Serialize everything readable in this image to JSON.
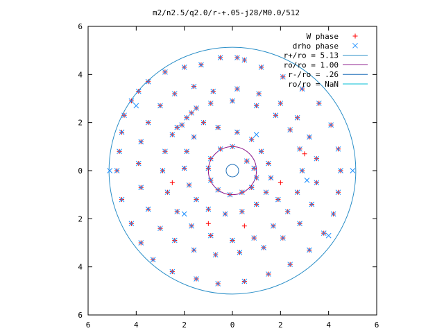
{
  "chart_data": {
    "type": "scatter",
    "title": "m2/n2.5/q2.0/r-+.05-j28/M0.0/512",
    "xlim": [
      -6,
      6
    ],
    "ylim": [
      -6,
      6
    ],
    "x_ticks": [
      -6,
      -4,
      -2,
      0,
      2,
      4,
      6
    ],
    "y_ticks": [
      -6,
      -4,
      -2,
      0,
      2,
      4,
      6
    ],
    "x_tick_labels": [
      "6",
      "4",
      "2",
      "0",
      "2",
      "4",
      "6"
    ],
    "y_tick_labels": [
      "6",
      "4",
      "2",
      "0",
      "2",
      "4",
      "6"
    ],
    "grid": false,
    "legend_position": "top-right",
    "legend": [
      {
        "label": "W phase",
        "marker": "+",
        "color": "#ff0000"
      },
      {
        "label": "drho phase",
        "marker": "x",
        "color": "#1e90ff"
      },
      {
        "label": "r+/ro = 5.13",
        "marker": "line",
        "color": "#2b8fc8"
      },
      {
        "label": "ro/ro = 1.00",
        "marker": "line",
        "color": "#8b1a8b"
      },
      {
        "label": "r-/ro = .26",
        "marker": "line",
        "color": "#1f6fb8"
      },
      {
        "label": "ro/ro = NaN",
        "marker": "line",
        "color": "#00bcd4"
      }
    ],
    "circles": [
      {
        "name": "r+/ro = 5.13",
        "r": 5.13,
        "color": "#2b8fc8"
      },
      {
        "name": "ro/ro = 1.00",
        "r": 1.0,
        "color": "#8b1a8b"
      },
      {
        "name": "r-/ro = .26",
        "r": 0.26,
        "color": "#1f6fb8"
      }
    ],
    "series": [
      {
        "name": "W phase",
        "marker": "+",
        "color": "#ff0000",
        "points": [
          [
            0.2,
            4.7
          ],
          [
            0.5,
            4.6
          ],
          [
            -0.5,
            4.7
          ],
          [
            -1.3,
            4.4
          ],
          [
            -2.0,
            4.3
          ],
          [
            -2.8,
            4.1
          ],
          [
            -3.5,
            3.7
          ],
          [
            -3.9,
            3.3
          ],
          [
            -4.2,
            2.9
          ],
          [
            -4.5,
            2.3
          ],
          [
            -4.6,
            1.6
          ],
          [
            -4.7,
            0.8
          ],
          [
            -4.8,
            0
          ],
          [
            -4.6,
            -1.2
          ],
          [
            -4.2,
            -2.2
          ],
          [
            -3.8,
            -3.0
          ],
          [
            -3.3,
            -3.7
          ],
          [
            -2.5,
            -4.2
          ],
          [
            -1.5,
            -4.5
          ],
          [
            -0.6,
            -4.7
          ],
          [
            0.5,
            -4.6
          ],
          [
            1.5,
            -4.3
          ],
          [
            2.4,
            -3.9
          ],
          [
            3.2,
            -3.3
          ],
          [
            3.8,
            -2.6
          ],
          [
            4.2,
            -1.8
          ],
          [
            4.4,
            -0.9
          ],
          [
            4.5,
            0
          ],
          [
            4.4,
            0.9
          ],
          [
            4.1,
            1.9
          ],
          [
            3.6,
            2.8
          ],
          [
            2.9,
            3.4
          ],
          [
            2.1,
            3.9
          ],
          [
            1.2,
            4.3
          ],
          [
            -1.6,
            3.5
          ],
          [
            -2.4,
            3.2
          ],
          [
            -3.0,
            2.7
          ],
          [
            -3.5,
            2.0
          ],
          [
            -3.8,
            1.2
          ],
          [
            -3.9,
            0.3
          ],
          [
            -3.8,
            -0.7
          ],
          [
            -3.5,
            -1.6
          ],
          [
            -3.0,
            -2.4
          ],
          [
            -2.4,
            -2.9
          ],
          [
            -1.6,
            -3.3
          ],
          [
            -0.7,
            -3.5
          ],
          [
            0.3,
            -3.4
          ],
          [
            1.3,
            -3.2
          ],
          [
            2.1,
            -2.8
          ],
          [
            2.8,
            -2.2
          ],
          [
            3.3,
            -1.4
          ],
          [
            3.5,
            -0.5
          ],
          [
            3.5,
            0.5
          ],
          [
            3.2,
            1.4
          ],
          [
            2.7,
            2.2
          ],
          [
            2.0,
            2.8
          ],
          [
            1.1,
            3.2
          ],
          [
            0.2,
            3.4
          ],
          [
            -0.8,
            3.3
          ],
          [
            -1.5,
            2.6
          ],
          [
            -1.9,
            2.2
          ],
          [
            -1.2,
            2.0
          ],
          [
            -0.6,
            1.8
          ],
          [
            0.2,
            1.6
          ],
          [
            0.8,
            1.3
          ],
          [
            1.2,
            0.8
          ],
          [
            1.5,
            0.3
          ],
          [
            1.6,
            -0.3
          ],
          [
            1.4,
            -0.9
          ],
          [
            1.0,
            -1.4
          ],
          [
            0.4,
            -1.7
          ],
          [
            -0.3,
            -1.8
          ],
          [
            -1.0,
            -1.6
          ],
          [
            -1.5,
            -1.2
          ],
          [
            -1.8,
            -0.6
          ],
          [
            -2.0,
            0.1
          ],
          [
            -1.9,
            0.8
          ],
          [
            -1.6,
            1.4
          ],
          [
            -2.1,
            1.9
          ],
          [
            -2.5,
            1.5
          ],
          [
            -2.8,
            0.8
          ],
          [
            -2.9,
            0
          ],
          [
            -2.7,
            -0.9
          ],
          [
            -2.3,
            -1.7
          ],
          [
            -1.7,
            -2.3
          ],
          [
            -0.9,
            -2.7
          ],
          [
            0,
            -2.9
          ],
          [
            0.9,
            -2.8
          ],
          [
            1.7,
            -2.3
          ],
          [
            2.3,
            -1.7
          ],
          [
            2.7,
            -0.9
          ],
          [
            2.9,
            0
          ],
          [
            2.8,
            0.9
          ],
          [
            2.4,
            1.7
          ],
          [
            1.8,
            2.3
          ],
          [
            1.0,
            2.7
          ],
          [
            0,
            2.9
          ],
          [
            -0.9,
            2.8
          ],
          [
            -1.7,
            2.4
          ],
          [
            -2.3,
            1.8
          ],
          [
            0.6,
            0.4
          ],
          [
            0.9,
            0.1
          ],
          [
            1.0,
            -0.3
          ],
          [
            0.8,
            -0.7
          ],
          [
            0.4,
            -0.9
          ],
          [
            -0.1,
            -1.0
          ],
          [
            -0.6,
            -0.8
          ],
          [
            -0.9,
            -0.4
          ],
          [
            -1.0,
            0.1
          ],
          [
            -0.9,
            0.5
          ],
          [
            -0.5,
            0.9
          ],
          [
            0,
            1.0
          ],
          [
            3.0,
            0.7
          ],
          [
            2.0,
            -0.5
          ],
          [
            -2.5,
            -0.5
          ],
          [
            -1.0,
            -2.2
          ],
          [
            0.5,
            -2.3
          ],
          [
            1.9,
            -1.2
          ]
        ]
      },
      {
        "name": "drho phase",
        "marker": "x",
        "color": "#1e90ff",
        "points": [
          [
            0.2,
            4.7
          ],
          [
            0.5,
            4.6
          ],
          [
            -0.5,
            4.7
          ],
          [
            -1.3,
            4.4
          ],
          [
            -2.0,
            4.3
          ],
          [
            -2.8,
            4.1
          ],
          [
            -3.5,
            3.7
          ],
          [
            -3.9,
            3.3
          ],
          [
            -4.2,
            2.9
          ],
          [
            -4.5,
            2.3
          ],
          [
            -4.6,
            1.6
          ],
          [
            -4.7,
            0.8
          ],
          [
            -4.8,
            0
          ],
          [
            -4.6,
            -1.2
          ],
          [
            -4.2,
            -2.2
          ],
          [
            -3.8,
            -3.0
          ],
          [
            -3.3,
            -3.7
          ],
          [
            -2.5,
            -4.2
          ],
          [
            -1.5,
            -4.5
          ],
          [
            -0.6,
            -4.7
          ],
          [
            0.5,
            -4.6
          ],
          [
            1.5,
            -4.3
          ],
          [
            2.4,
            -3.9
          ],
          [
            3.2,
            -3.3
          ],
          [
            3.8,
            -2.6
          ],
          [
            4.2,
            -1.8
          ],
          [
            4.4,
            -0.9
          ],
          [
            4.5,
            0
          ],
          [
            4.4,
            0.9
          ],
          [
            4.1,
            1.9
          ],
          [
            3.6,
            2.8
          ],
          [
            2.9,
            3.4
          ],
          [
            2.1,
            3.9
          ],
          [
            1.2,
            4.3
          ],
          [
            -1.6,
            3.5
          ],
          [
            -2.4,
            3.2
          ],
          [
            -3.0,
            2.7
          ],
          [
            -3.5,
            2.0
          ],
          [
            -3.8,
            1.2
          ],
          [
            -3.9,
            0.3
          ],
          [
            -3.8,
            -0.7
          ],
          [
            -3.5,
            -1.6
          ],
          [
            -3.0,
            -2.4
          ],
          [
            -2.4,
            -2.9
          ],
          [
            -1.6,
            -3.3
          ],
          [
            -0.7,
            -3.5
          ],
          [
            0.3,
            -3.4
          ],
          [
            1.3,
            -3.2
          ],
          [
            2.1,
            -2.8
          ],
          [
            2.8,
            -2.2
          ],
          [
            3.3,
            -1.4
          ],
          [
            3.5,
            -0.5
          ],
          [
            3.5,
            0.5
          ],
          [
            3.2,
            1.4
          ],
          [
            2.7,
            2.2
          ],
          [
            2.0,
            2.8
          ],
          [
            1.1,
            3.2
          ],
          [
            0.2,
            3.4
          ],
          [
            -0.8,
            3.3
          ],
          [
            -1.5,
            2.6
          ],
          [
            -1.9,
            2.2
          ],
          [
            -1.2,
            2.0
          ],
          [
            -0.6,
            1.8
          ],
          [
            0.2,
            1.6
          ],
          [
            0.8,
            1.3
          ],
          [
            1.2,
            0.8
          ],
          [
            1.5,
            0.3
          ],
          [
            1.6,
            -0.3
          ],
          [
            1.4,
            -0.9
          ],
          [
            1.0,
            -1.4
          ],
          [
            0.4,
            -1.7
          ],
          [
            -0.3,
            -1.8
          ],
          [
            -1.0,
            -1.6
          ],
          [
            -1.5,
            -1.2
          ],
          [
            -1.8,
            -0.6
          ],
          [
            -2.0,
            0.1
          ],
          [
            -1.9,
            0.8
          ],
          [
            -1.6,
            1.4
          ],
          [
            -2.1,
            1.9
          ],
          [
            -2.5,
            1.5
          ],
          [
            -2.8,
            0.8
          ],
          [
            -2.9,
            0
          ],
          [
            -2.7,
            -0.9
          ],
          [
            -2.3,
            -1.7
          ],
          [
            -1.7,
            -2.3
          ],
          [
            -0.9,
            -2.7
          ],
          [
            0,
            -2.9
          ],
          [
            0.9,
            -2.8
          ],
          [
            1.7,
            -2.3
          ],
          [
            2.3,
            -1.7
          ],
          [
            2.7,
            -0.9
          ],
          [
            2.9,
            0
          ],
          [
            2.8,
            0.9
          ],
          [
            2.4,
            1.7
          ],
          [
            1.8,
            2.3
          ],
          [
            1.0,
            2.7
          ],
          [
            0,
            2.9
          ],
          [
            -0.9,
            2.8
          ],
          [
            -1.7,
            2.4
          ],
          [
            -2.3,
            1.8
          ],
          [
            0.6,
            0.4
          ],
          [
            0.9,
            0.1
          ],
          [
            1.0,
            -0.3
          ],
          [
            0.8,
            -0.7
          ],
          [
            0.4,
            -0.9
          ],
          [
            -0.1,
            -1.0
          ],
          [
            -0.6,
            -0.8
          ],
          [
            -0.9,
            -0.4
          ],
          [
            -1.0,
            0.1
          ],
          [
            -0.9,
            0.5
          ],
          [
            -0.5,
            0.9
          ],
          [
            0,
            1.0
          ],
          [
            3.1,
            -0.4
          ],
          [
            5.0,
            0
          ],
          [
            -5.1,
            0
          ],
          [
            4.0,
            -2.7
          ],
          [
            -4.0,
            2.7
          ],
          [
            1.9,
            -1.2
          ],
          [
            -2.0,
            -1.8
          ],
          [
            1.0,
            1.5
          ]
        ]
      }
    ]
  }
}
